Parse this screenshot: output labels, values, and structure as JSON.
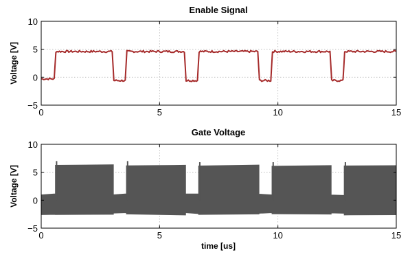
{
  "chart_data": [
    {
      "type": "line",
      "title": "Enable Signal",
      "xlabel": "",
      "ylabel": "Voltage [V]",
      "xlim": [
        0,
        15
      ],
      "ylim": [
        -5,
        10
      ],
      "xticks": [
        0,
        5,
        10,
        15
      ],
      "yticks": [
        -5,
        0,
        5,
        10
      ],
      "grid": true,
      "series": [
        {
          "color": "#a52a2a",
          "x": [
            0,
            0.55,
            0.62,
            3.0,
            3.07,
            3.55,
            3.62,
            6.05,
            6.12,
            6.6,
            6.67,
            9.15,
            9.22,
            9.7,
            9.77,
            12.2,
            12.27,
            12.75,
            12.82,
            15
          ],
          "y": [
            -0.3,
            -0.3,
            4.6,
            4.6,
            -0.6,
            -0.6,
            4.6,
            4.6,
            -0.6,
            -0.6,
            4.6,
            4.6,
            -0.6,
            -0.6,
            4.6,
            4.6,
            -0.6,
            -0.6,
            4.6,
            4.6
          ]
        }
      ]
    },
    {
      "type": "area",
      "title": "Gate Voltage",
      "xlabel": "time [us]",
      "ylabel": "Voltage [V]",
      "xlim": [
        0,
        15
      ],
      "ylim": [
        -5,
        10
      ],
      "xticks": [
        0,
        5,
        10,
        15
      ],
      "yticks": [
        -5,
        0,
        5,
        10
      ],
      "grid": true,
      "series": [
        {
          "color": "#555555",
          "x": [
            0,
            0.6,
            0.6,
            3.05,
            3.05,
            3.6,
            3.6,
            6.1,
            6.1,
            6.65,
            6.65,
            9.2,
            9.2,
            9.75,
            9.75,
            12.25,
            12.25,
            12.8,
            12.8,
            15
          ],
          "y_max": [
            1.0,
            1.0,
            6.2,
            6.2,
            1.0,
            1.0,
            6.2,
            6.2,
            1.0,
            1.0,
            6.2,
            6.2,
            1.0,
            1.0,
            6.2,
            6.2,
            1.0,
            1.0,
            6.2,
            6.2
          ],
          "y_min": [
            -2.5,
            -2.5,
            -2.5,
            -2.5,
            -2.3,
            -2.3,
            -2.5,
            -2.5,
            -2.3,
            -2.3,
            -2.5,
            -2.5,
            -2.3,
            -2.3,
            -2.5,
            -2.5,
            -2.3,
            -2.3,
            -2.5,
            -2.5
          ],
          "spikes": [
            {
              "x": 0.65,
              "y": 7.0
            },
            {
              "x": 3.65,
              "y": 7.0
            },
            {
              "x": 6.7,
              "y": 6.8
            },
            {
              "x": 9.8,
              "y": 6.8
            },
            {
              "x": 12.85,
              "y": 6.8
            }
          ]
        }
      ]
    }
  ]
}
